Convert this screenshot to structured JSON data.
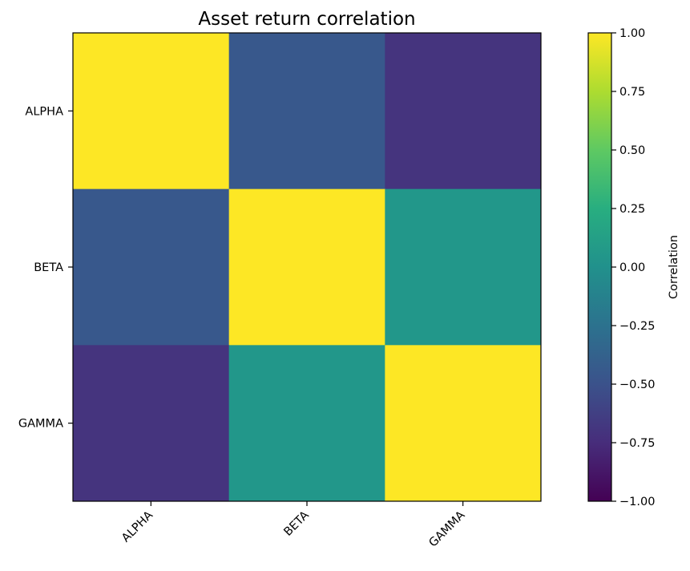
{
  "chart_data": {
    "type": "heatmap",
    "title": "Asset return correlation",
    "row_labels": [
      "ALPHA",
      "BETA",
      "GAMMA"
    ],
    "col_labels": [
      "ALPHA",
      "BETA",
      "GAMMA"
    ],
    "matrix": [
      [
        1.0,
        -0.45,
        -0.7
      ],
      [
        -0.45,
        1.0,
        0.05
      ],
      [
        -0.7,
        0.05,
        1.0
      ]
    ],
    "colormap": "viridis",
    "vmin": -1.0,
    "vmax": 1.0,
    "colorbar": {
      "label": "Correlation",
      "ticks": [
        1.0,
        0.75,
        0.5,
        0.25,
        0.0,
        -0.25,
        -0.5,
        -0.75,
        -1.0
      ],
      "tick_labels": [
        "1.00",
        "0.75",
        "0.50",
        "0.25",
        "0.00",
        "−0.25",
        "−0.50",
        "−0.75",
        "−1.00"
      ]
    },
    "grid": false
  }
}
